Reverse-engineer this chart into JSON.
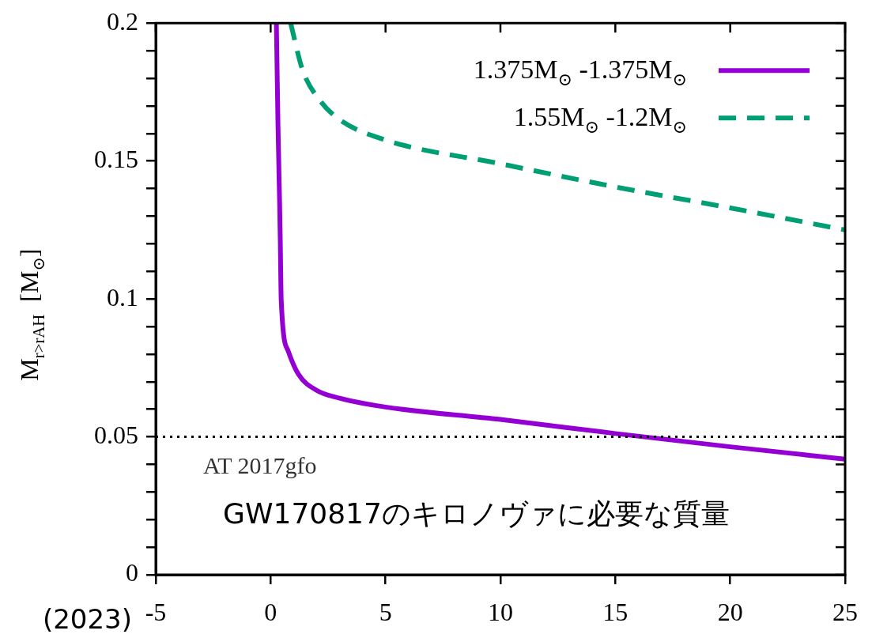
{
  "chart_data": {
    "type": "line",
    "ylabel": "M$_{r>rAH}$  [M$_{⊙}$]",
    "xlim": [
      -5,
      25
    ],
    "xticks": [
      -5,
      0,
      5,
      10,
      15,
      20,
      25
    ],
    "ylim": [
      0,
      0.2
    ],
    "yticks": [
      0,
      {
        "value": 0.01,
        "label": null
      },
      {
        "value": 0.02,
        "label": null
      },
      {
        "value": 0.03,
        "label": null
      },
      {
        "value": 0.04,
        "label": null
      },
      0.05,
      {
        "value": 0.06,
        "label": null
      },
      {
        "value": 0.07,
        "label": null
      },
      {
        "value": 0.08,
        "label": null
      },
      {
        "value": 0.09,
        "label": null
      },
      0.1,
      {
        "value": 0.11,
        "label": null
      },
      {
        "value": 0.12,
        "label": null
      },
      {
        "value": 0.13,
        "label": null
      },
      {
        "value": 0.14,
        "label": null
      },
      0.15,
      {
        "value": 0.16,
        "label": null
      },
      {
        "value": 0.17,
        "label": null
      },
      {
        "value": 0.18,
        "label": null
      },
      {
        "value": 0.19,
        "label": null
      },
      0.2
    ],
    "legend": "top right",
    "marker": "none",
    "series": [
      {
        "name": "1.375M$_{⊙}$ -1.375M$_{⊙}$",
        "color": "#9400d3",
        "line_style": "solid",
        "x": [
          0.25,
          0.32,
          0.39,
          0.42,
          0.46,
          0.77,
          1.21,
          1.97,
          3.0,
          5,
          10,
          15,
          20,
          25
        ],
        "values": [
          0.2,
          0.163,
          0.135,
          0.121,
          0.0996,
          0.081,
          0.0727,
          0.067,
          0.064,
          0.0608,
          0.0563,
          0.0512,
          0.0464,
          0.0419
        ]
      },
      {
        "name": "1.55M$_{⊙}$ -1.2M$_{⊙}$",
        "color": "#009e73",
        "line_style": "dashed",
        "x": [
          0.87,
          1.39,
          2.14,
          3.0,
          5,
          10,
          15,
          20,
          25
        ],
        "values": [
          0.2,
          0.183,
          0.172,
          0.165,
          0.1576,
          0.149,
          0.1406,
          0.133,
          0.125
        ]
      }
    ],
    "ref_lines": [
      {
        "axis": "y",
        "value": 0.05,
        "label": "AT 2017gfo",
        "color": "#000000",
        "line_style": "dotted"
      }
    ],
    "annotations": [
      "GW170817のキロノヴァに必要な質量",
      "(2023)"
    ]
  }
}
